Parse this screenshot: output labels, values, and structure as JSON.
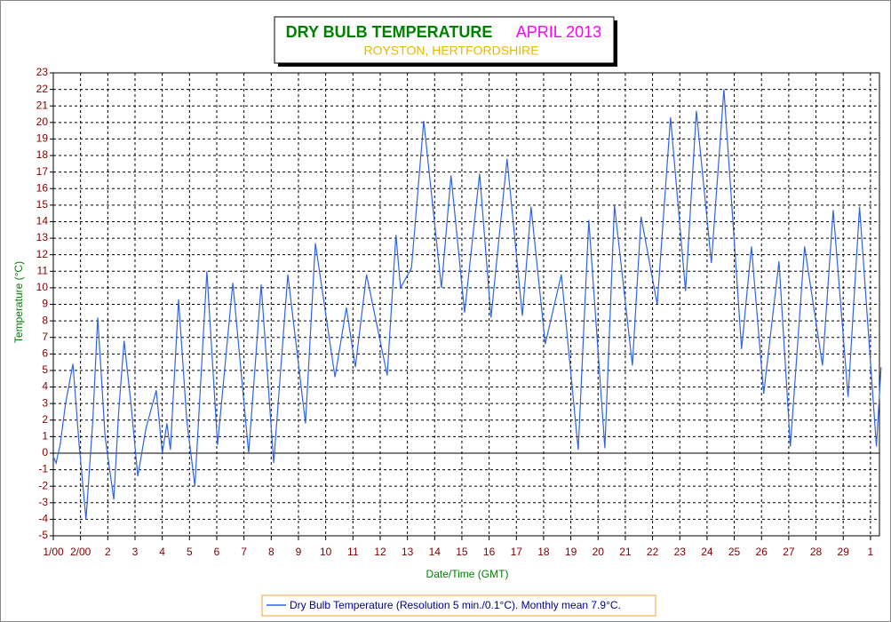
{
  "chart_data": {
    "type": "line",
    "title": "DRY BULB TEMPERATURE",
    "period": "APRIL 2013",
    "subtitle": "ROYSTON, HERTFORDSHIRE",
    "x_label": "Date/Time (GMT)",
    "y_label": "Temperature (°C)",
    "x": [
      0,
      0.1,
      0.25,
      0.45,
      0.72,
      0.95,
      1.2,
      1.45,
      1.63,
      1.9,
      2.22,
      2.4,
      2.6,
      2.85,
      3.1,
      3.4,
      3.78,
      4.0,
      4.17,
      4.3,
      4.6,
      4.9,
      5.2,
      5.4,
      5.64,
      6.03,
      6.59,
      7.17,
      7.63,
      8.09,
      8.61,
      9.26,
      9.62,
      10.34,
      10.76,
      11.09,
      11.5,
      12.26,
      12.58,
      12.75,
      13.15,
      13.6,
      14.25,
      14.6,
      15.1,
      15.65,
      16.07,
      16.66,
      17.22,
      17.54,
      18.06,
      18.65,
      19.27,
      19.66,
      20.25,
      20.6,
      21.26,
      21.58,
      22.17,
      22.66,
      23.21,
      23.61,
      24.16,
      24.62,
      25.27,
      25.63,
      26.08,
      26.64,
      27.06,
      27.58,
      28.24,
      28.63,
      29.18,
      29.6,
      30.22,
      30.39
    ],
    "series": [
      {
        "name": "Dry Bulb Temperature (Resolution 5 min./0.1°C). Monthly mean 7.9°C.",
        "color": "#2f63e8",
        "values": [
          -0.2,
          -0.6,
          0.5,
          3.0,
          5.4,
          0.5,
          -4.0,
          2.0,
          8.2,
          1.0,
          -2.8,
          2.5,
          6.8,
          3.0,
          -1.4,
          1.5,
          3.8,
          0.0,
          1.8,
          0.2,
          9.3,
          2.0,
          -2.0,
          4.0,
          11.0,
          0.5,
          10.3,
          0.0,
          10.2,
          -0.6,
          10.8,
          1.8,
          12.7,
          4.6,
          8.8,
          5.2,
          10.8,
          4.7,
          13.2,
          10.0,
          11.2,
          20.1,
          10.0,
          16.8,
          8.5,
          16.9,
          8.2,
          17.8,
          8.3,
          14.9,
          6.6,
          10.8,
          0.2,
          14.1,
          0.3,
          15.0,
          5.3,
          14.3,
          9.0,
          20.3,
          9.8,
          20.7,
          11.5,
          22.0,
          6.3,
          12.5,
          3.6,
          11.6,
          0.4,
          12.5,
          5.3,
          14.7,
          3.4,
          14.9,
          0.4,
          5.2
        ]
      }
    ],
    "xlim": [
      0,
      30.33
    ],
    "xticks": [
      {
        "value": 0,
        "label": "1/00"
      },
      {
        "value": 1,
        "label": "2/00"
      },
      2,
      3,
      4,
      5,
      6,
      7,
      8,
      9,
      10,
      11,
      12,
      13,
      14,
      15,
      16,
      17,
      18,
      19,
      20,
      21,
      22,
      23,
      24,
      25,
      26,
      27,
      28,
      29,
      {
        "value": 30,
        "label": "1"
      }
    ],
    "xtick_labels_override": null,
    "ylim": [
      -5,
      23
    ],
    "yticks": [
      -5,
      -4,
      -3,
      -2,
      -1,
      0,
      1,
      2,
      3,
      4,
      5,
      6,
      7,
      8,
      9,
      10,
      11,
      12,
      13,
      14,
      15,
      16,
      17,
      18,
      19,
      20,
      21,
      22,
      23
    ],
    "grid": true
  }
}
